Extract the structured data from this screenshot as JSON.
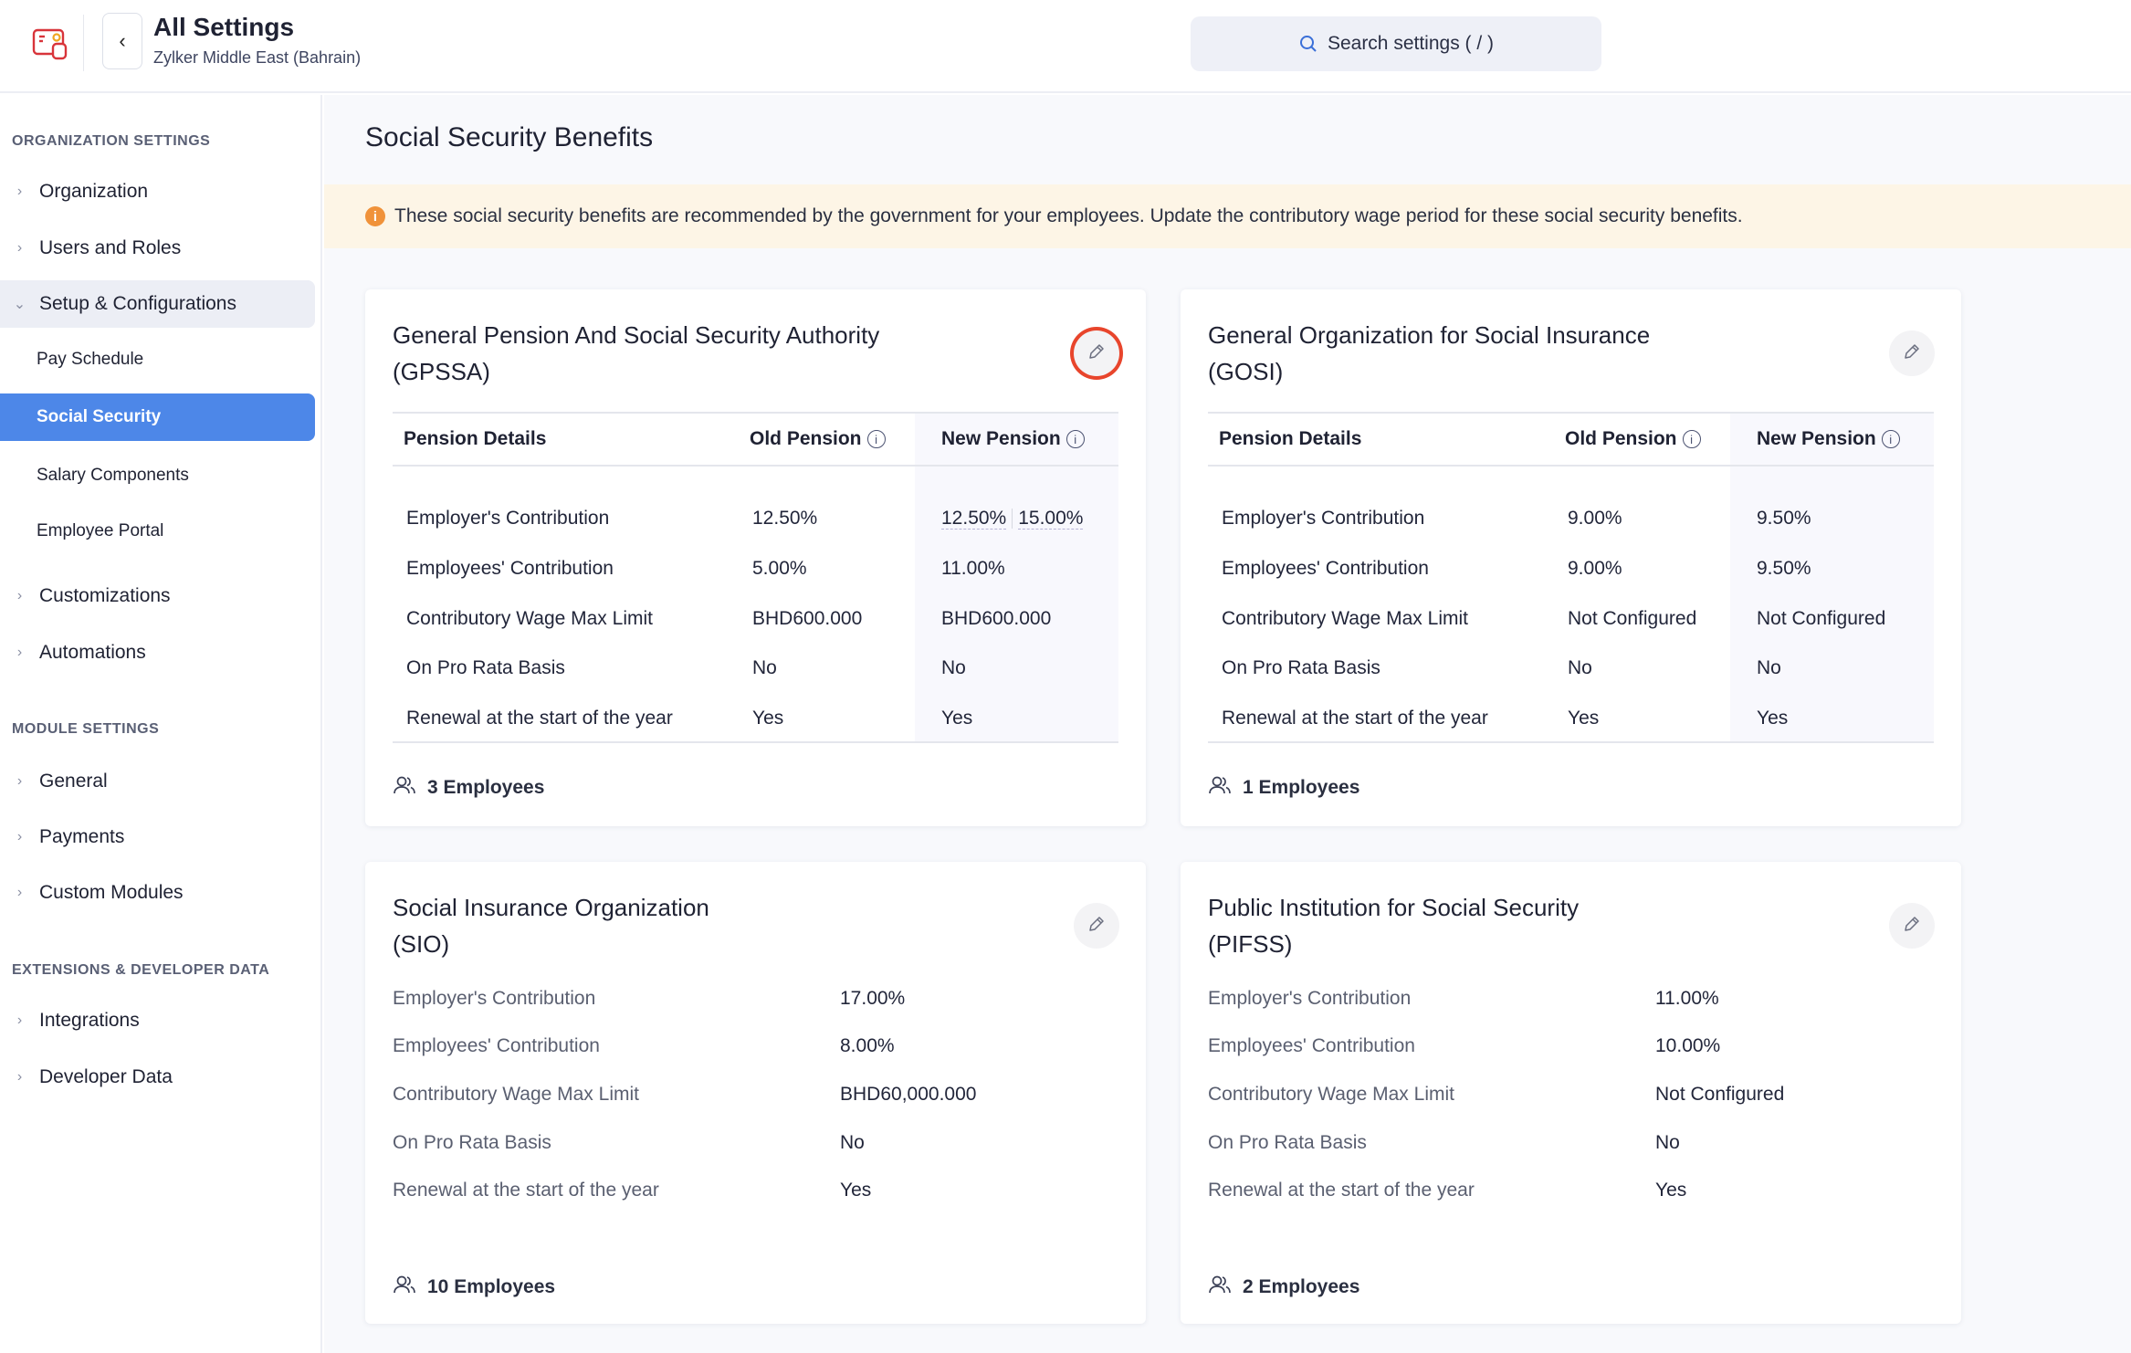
{
  "header": {
    "title": "All Settings",
    "subtitle": "Zylker Middle East (Bahrain)",
    "search_placeholder": "Search settings ( / )",
    "back_icon": "chevron-left-icon"
  },
  "sidebar": {
    "sections": [
      {
        "title": "ORGANIZATION SETTINGS",
        "items": [
          {
            "label": "Organization",
            "expandable": true
          },
          {
            "label": "Users and Roles",
            "expandable": true
          },
          {
            "label": "Setup & Configurations",
            "expandable": true,
            "open": true,
            "children": [
              {
                "label": "Pay Schedule"
              },
              {
                "label": "Social Security",
                "active": true
              },
              {
                "label": "Salary Components"
              },
              {
                "label": "Employee Portal"
              }
            ]
          },
          {
            "label": "Customizations",
            "expandable": true
          },
          {
            "label": "Automations",
            "expandable": true
          }
        ]
      },
      {
        "title": "MODULE SETTINGS",
        "items": [
          {
            "label": "General",
            "expandable": true
          },
          {
            "label": "Payments",
            "expandable": true
          },
          {
            "label": "Custom Modules",
            "expandable": true
          }
        ]
      },
      {
        "title": "EXTENSIONS & DEVELOPER DATA",
        "items": [
          {
            "label": "Integrations",
            "expandable": true
          },
          {
            "label": "Developer Data",
            "expandable": true
          }
        ]
      }
    ]
  },
  "main": {
    "title": "Social Security Benefits",
    "banner": "These social security benefits are recommended by the government for your employees. Update the contributory wage period for these social security benefits.",
    "colors": {
      "accent": "#4d87e8",
      "banner_bg": "#fdf5e6",
      "highlight": "#e8452c"
    },
    "table_cards": [
      {
        "title_line1": "General Pension And Social Security Authority",
        "title_line2": "(GPSSA)",
        "highlighted": true,
        "headers": [
          "Pension Details",
          "Old Pension",
          "New Pension"
        ],
        "rows": [
          {
            "label": "Employer's Contribution",
            "old": "12.50%",
            "new": [
              "12.50%",
              "15.00%"
            ]
          },
          {
            "label": "Employees' Contribution",
            "old": "5.00%",
            "new": [
              "11.00%"
            ]
          },
          {
            "label": "Contributory Wage Max Limit",
            "old": "BHD600.000",
            "new": [
              "BHD600.000"
            ]
          },
          {
            "label": "On Pro Rata Basis",
            "old": "No",
            "new": [
              "No"
            ]
          },
          {
            "label": "Renewal at the start of the year",
            "old": "Yes",
            "new": [
              "Yes"
            ]
          }
        ],
        "employees": "3 Employees"
      },
      {
        "title_line1": "General Organization for Social Insurance",
        "title_line2": "(GOSI)",
        "headers": [
          "Pension Details",
          "Old Pension",
          "New Pension"
        ],
        "rows": [
          {
            "label": "Employer's Contribution",
            "old": "9.00%",
            "new": [
              "9.50%"
            ]
          },
          {
            "label": "Employees' Contribution",
            "old": "9.00%",
            "new": [
              "9.50%"
            ]
          },
          {
            "label": "Contributory Wage Max Limit",
            "old": "Not Configured",
            "new": [
              "Not Configured"
            ]
          },
          {
            "label": "On Pro Rata Basis",
            "old": "No",
            "new": [
              "No"
            ]
          },
          {
            "label": "Renewal at the start of the year",
            "old": "Yes",
            "new": [
              "Yes"
            ]
          }
        ],
        "employees": "1 Employees"
      }
    ],
    "list_cards": [
      {
        "title_line1": "Social Insurance Organization",
        "title_line2": "(SIO)",
        "rows": [
          {
            "label": "Employer's Contribution",
            "value": "17.00%"
          },
          {
            "label": "Employees' Contribution",
            "value": "8.00%"
          },
          {
            "label": "Contributory Wage Max Limit",
            "value": "BHD60,000.000"
          },
          {
            "label": "On Pro Rata Basis",
            "value": "No"
          },
          {
            "label": "Renewal at the start of the year",
            "value": "Yes"
          }
        ],
        "employees": "10 Employees"
      },
      {
        "title_line1": "Public Institution for Social Security",
        "title_line2": "(PIFSS)",
        "rows": [
          {
            "label": "Employer's Contribution",
            "value": "11.00%"
          },
          {
            "label": "Employees' Contribution",
            "value": "10.00%"
          },
          {
            "label": "Contributory Wage Max Limit",
            "value": "Not Configured"
          },
          {
            "label": "On Pro Rata Basis",
            "value": "No"
          },
          {
            "label": "Renewal at the start of the year",
            "value": "Yes"
          }
        ],
        "employees": "2 Employees"
      }
    ]
  }
}
